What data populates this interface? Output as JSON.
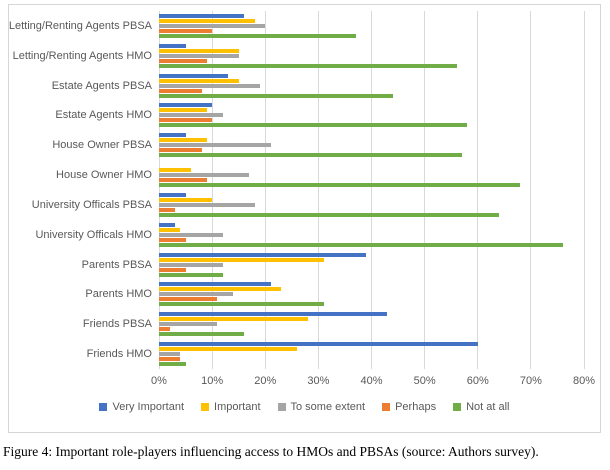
{
  "figure": {
    "caption": "Figure 4: Important role-players influencing access to HMOs and PBSAs (source: Authors survey)."
  },
  "chart_data": {
    "type": "bar",
    "orientation": "horizontal",
    "title": "",
    "xlabel": "",
    "ylabel": "",
    "xlim": [
      0,
      80
    ],
    "x_ticks": [
      "0%",
      "10%",
      "20%",
      "30%",
      "40%",
      "50%",
      "60%",
      "70%",
      "80%"
    ],
    "grid": true,
    "legend_position": "bottom",
    "categories": [
      "Letting/Renting Agents PBSA",
      "Letting/Renting Agents HMO",
      "Estate Agents PBSA",
      "Estate Agents HMO",
      "House Owner PBSA",
      "House Owner HMO",
      "University Officals PBSA",
      "University Officals HMO",
      "Parents PBSA",
      "Parents HMO",
      "Friends PBSA",
      "Friends HMO"
    ],
    "series": [
      {
        "name": "Very Important",
        "color": "#4472C4",
        "values": [
          16,
          5,
          13,
          10,
          5,
          0,
          5,
          3,
          39,
          21,
          43,
          60
        ]
      },
      {
        "name": "Important",
        "color": "#FFC000",
        "values": [
          18,
          15,
          15,
          9,
          9,
          6,
          10,
          4,
          31,
          23,
          28,
          26
        ]
      },
      {
        "name": "To some extent",
        "color": "#A5A5A5",
        "values": [
          20,
          15,
          19,
          12,
          21,
          17,
          18,
          12,
          12,
          14,
          11,
          4
        ]
      },
      {
        "name": "Perhaps",
        "color": "#ED7D31",
        "values": [
          10,
          9,
          8,
          10,
          8,
          9,
          3,
          5,
          5,
          11,
          2,
          4
        ]
      },
      {
        "name": "Not at all",
        "color": "#70AD47",
        "values": [
          37,
          56,
          44,
          58,
          57,
          68,
          64,
          76,
          12,
          31,
          16,
          5
        ]
      }
    ]
  }
}
